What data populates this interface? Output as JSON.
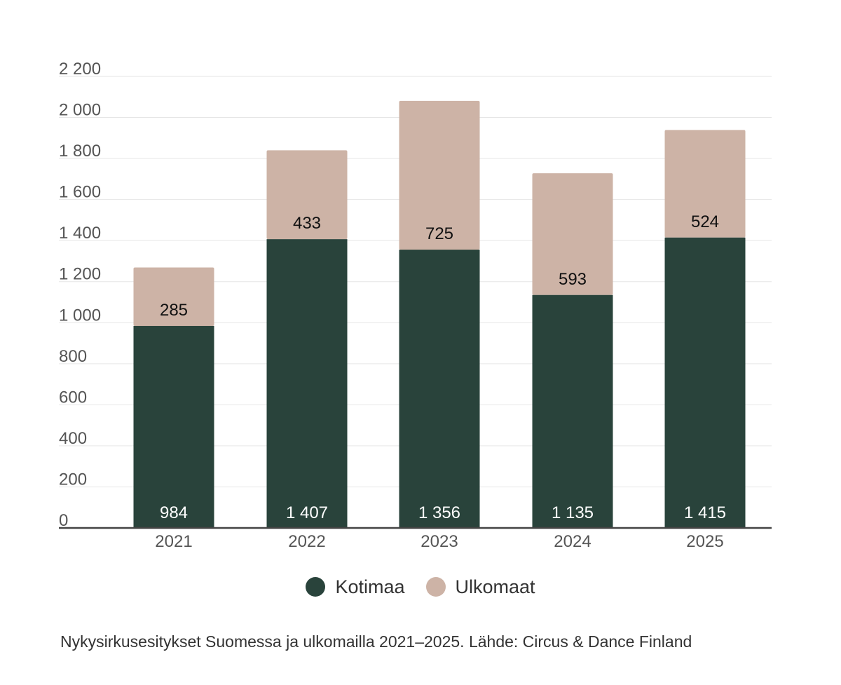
{
  "colors": {
    "kotimaa": "#29433b",
    "ulkomaat": "#cdb3a6",
    "grid": "#e6e6e6",
    "axis": "#444444",
    "tick_text": "#555555",
    "label_dark": "#111111",
    "label_light": "#ffffff"
  },
  "chart_data": {
    "type": "bar",
    "stacked": true,
    "categories": [
      "2021",
      "2022",
      "2023",
      "2024",
      "2025"
    ],
    "series": [
      {
        "name": "Kotimaa",
        "values": [
          984,
          1407,
          1356,
          1135,
          1415
        ],
        "labels": [
          "984",
          "1 407",
          "1 356",
          "1 135",
          "1 415"
        ]
      },
      {
        "name": "Ulkomaat",
        "values": [
          285,
          433,
          725,
          593,
          524
        ],
        "labels": [
          "285",
          "433",
          "725",
          "593",
          "524"
        ]
      }
    ],
    "ylim": [
      0,
      2200
    ],
    "yticks": [
      0,
      200,
      400,
      600,
      800,
      1000,
      1200,
      1400,
      1600,
      1800,
      2000,
      2200
    ],
    "ytick_labels": [
      "0",
      "200",
      "400",
      "600",
      "800",
      "1 000",
      "1 200",
      "1 400",
      "1 600",
      "1 800",
      "2 000",
      "2 200"
    ],
    "grid": true,
    "legend_position": "bottom-center",
    "caption": "Nykysirkusesitykset Suomessa ja ulkomailla 2021–2025. Lähde: Circus & Dance Finland"
  },
  "legend": {
    "items": [
      {
        "label": "Kotimaa"
      },
      {
        "label": "Ulkomaat"
      }
    ]
  }
}
